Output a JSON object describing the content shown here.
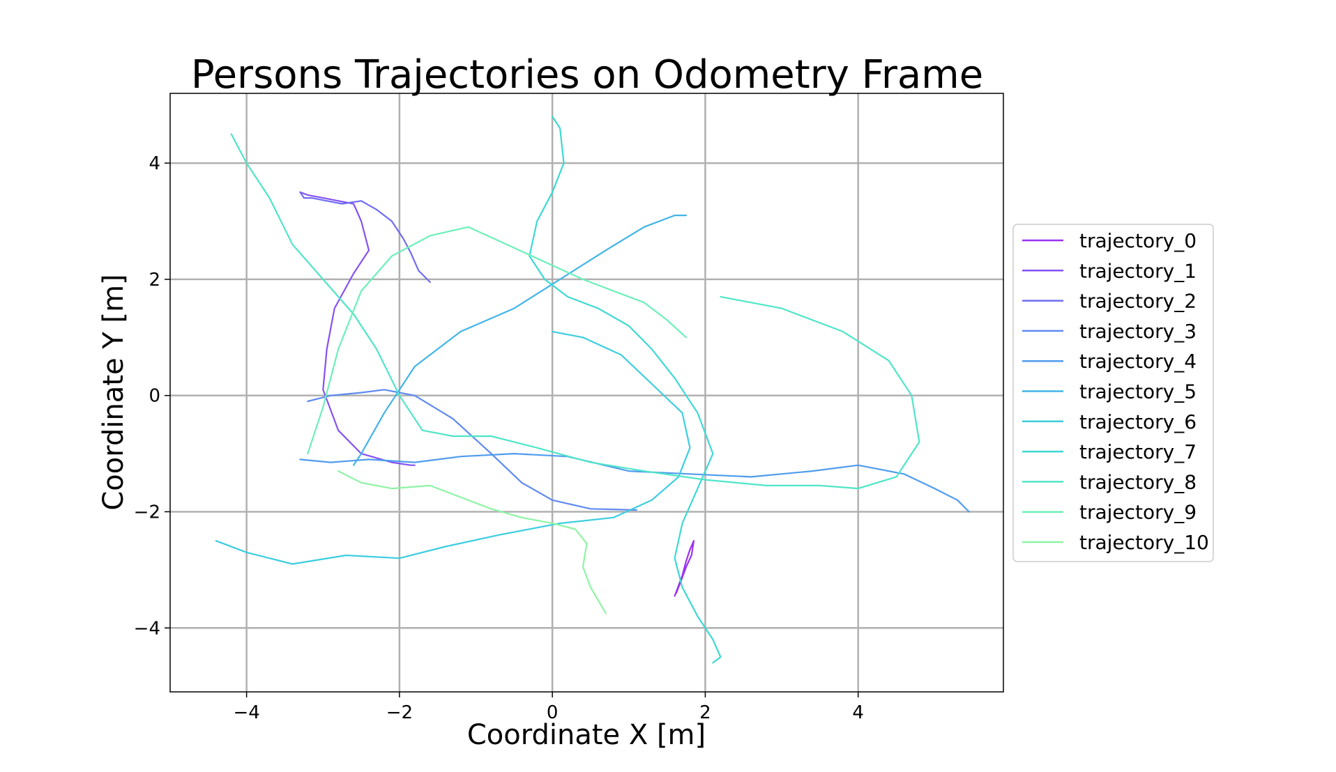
{
  "chart_data": {
    "type": "line",
    "title": "Persons Trajectories on Odometry Frame",
    "xlabel": "Coordinate X [m]",
    "ylabel": "Coordinate Y [m]",
    "xlim": [
      -5,
      5.9
    ],
    "ylim": [
      -5.1,
      5.2
    ],
    "xticks": [
      -4,
      -2,
      0,
      2,
      4
    ],
    "yticks": [
      -4,
      -2,
      0,
      2,
      4
    ],
    "xtick_labels": [
      "−4",
      "−2",
      "0",
      "2",
      "4"
    ],
    "ytick_labels": [
      "−4",
      "−2",
      "0",
      "2",
      "4"
    ],
    "grid": true,
    "legend_position": "right",
    "series": [
      {
        "name": "trajectory_0",
        "color": "#9a32f0",
        "x": [
          1.6,
          1.7,
          1.75,
          1.8,
          1.85,
          1.82,
          1.75,
          1.68,
          1.62
        ],
        "y": [
          -3.45,
          -3.1,
          -2.85,
          -2.65,
          -2.5,
          -2.75,
          -2.95,
          -3.2,
          -3.4
        ]
      },
      {
        "name": "trajectory_1",
        "color": "#8451f2",
        "x": [
          -3.3,
          -3.2,
          -3.0,
          -2.8,
          -2.6,
          -2.5,
          -2.4,
          -2.6,
          -2.85,
          -2.95,
          -3.0,
          -2.8,
          -2.5,
          -2.1,
          -1.85,
          -1.8
        ],
        "y": [
          3.5,
          3.45,
          3.4,
          3.35,
          3.3,
          3.0,
          2.5,
          2.1,
          1.5,
          0.8,
          0.1,
          -0.6,
          -1.0,
          -1.15,
          -1.2,
          -1.2
        ]
      },
      {
        "name": "trajectory_2",
        "color": "#6f6cf2",
        "x": [
          -3.3,
          -3.25,
          -3.15,
          -2.95,
          -2.75,
          -2.5,
          -2.3,
          -2.1,
          -1.95,
          -1.85,
          -1.75,
          -1.6
        ],
        "y": [
          3.5,
          3.4,
          3.4,
          3.35,
          3.3,
          3.35,
          3.2,
          3.0,
          2.7,
          2.45,
          2.15,
          1.95
        ]
      },
      {
        "name": "trajectory_3",
        "color": "#5e8af0",
        "x": [
          -3.2,
          -2.9,
          -2.5,
          -2.2,
          -1.8,
          -1.3,
          -0.8,
          -0.4,
          0.0,
          0.5,
          1.1
        ],
        "y": [
          -0.1,
          0.0,
          0.05,
          0.1,
          0.0,
          -0.4,
          -1.0,
          -1.5,
          -1.8,
          -1.95,
          -1.97
        ]
      },
      {
        "name": "trajectory_4",
        "color": "#4f9cee",
        "x": [
          -3.3,
          -2.9,
          -2.4,
          -1.8,
          -1.2,
          -0.5,
          0.2,
          1.0,
          1.8,
          2.6,
          3.4,
          4.0,
          4.6,
          5.0,
          5.3,
          5.45
        ],
        "y": [
          -1.1,
          -1.15,
          -1.1,
          -1.15,
          -1.05,
          -1.0,
          -1.05,
          -1.3,
          -1.35,
          -1.4,
          -1.3,
          -1.2,
          -1.35,
          -1.6,
          -1.8,
          -2.0
        ]
      },
      {
        "name": "trajectory_5",
        "color": "#41b4e8",
        "x": [
          -2.6,
          -2.5,
          -2.2,
          -1.8,
          -1.2,
          -0.5,
          0.1,
          0.7,
          1.2,
          1.6,
          1.75
        ],
        "y": [
          -1.2,
          -1.0,
          -0.3,
          0.5,
          1.1,
          1.5,
          2.0,
          2.5,
          2.9,
          3.1,
          3.1
        ]
      },
      {
        "name": "trajectory_6",
        "color": "#3ccde0",
        "x": [
          -4.4,
          -4.0,
          -3.4,
          -2.7,
          -2.0,
          -1.4,
          -0.7,
          0.1,
          0.8,
          1.3,
          1.65,
          1.8,
          1.7,
          1.3,
          0.9,
          0.4,
          0.0
        ],
        "y": [
          -2.5,
          -2.7,
          -2.9,
          -2.75,
          -2.8,
          -2.6,
          -2.4,
          -2.2,
          -2.1,
          -1.8,
          -1.4,
          -0.9,
          -0.3,
          0.2,
          0.7,
          1.0,
          1.1
        ]
      },
      {
        "name": "trajectory_7",
        "color": "#3cd9d2",
        "x": [
          0.0,
          0.1,
          0.15,
          0.0,
          -0.2,
          -0.3,
          -0.1,
          0.2,
          0.6,
          1.0,
          1.3,
          1.6,
          1.9,
          2.1,
          1.9,
          1.7,
          1.6,
          1.7,
          1.9,
          2.1,
          2.2,
          2.1
        ],
        "y": [
          4.8,
          4.6,
          4.0,
          3.5,
          3.0,
          2.4,
          2.0,
          1.7,
          1.5,
          1.2,
          0.8,
          0.3,
          -0.3,
          -1.0,
          -1.6,
          -2.2,
          -2.8,
          -3.3,
          -3.8,
          -4.2,
          -4.5,
          -4.6
        ]
      },
      {
        "name": "trajectory_8",
        "color": "#4fe5c8",
        "x": [
          -4.2,
          -4.0,
          -3.7,
          -3.4,
          -3.0,
          -2.6,
          -2.3,
          -2.0,
          -1.7,
          -1.3,
          -0.8,
          -0.2,
          0.5,
          1.2,
          2.0,
          2.8,
          3.5,
          4.0,
          4.5,
          4.8,
          4.7,
          4.4,
          3.8,
          3.0,
          2.2
        ],
        "y": [
          4.5,
          4.0,
          3.4,
          2.6,
          2.0,
          1.4,
          0.8,
          0.0,
          -0.6,
          -0.7,
          -0.7,
          -0.9,
          -1.15,
          -1.3,
          -1.45,
          -1.55,
          -1.55,
          -1.6,
          -1.4,
          -0.8,
          0.0,
          0.6,
          1.1,
          1.5,
          1.7
        ]
      },
      {
        "name": "trajectory_9",
        "color": "#6cf0b9",
        "x": [
          -3.2,
          -3.0,
          -2.8,
          -2.5,
          -2.1,
          -1.6,
          -1.1,
          -0.6,
          -0.1,
          0.4,
          0.8,
          1.2,
          1.5,
          1.75
        ],
        "y": [
          -1.0,
          -0.2,
          0.8,
          1.8,
          2.4,
          2.75,
          2.9,
          2.6,
          2.3,
          2.0,
          1.8,
          1.6,
          1.3,
          1.0
        ]
      },
      {
        "name": "trajectory_10",
        "color": "#8ef4a4",
        "x": [
          -2.8,
          -2.5,
          -2.1,
          -1.6,
          -1.2,
          -0.8,
          -0.4,
          0.0,
          0.3,
          0.45,
          0.4,
          0.5,
          0.7
        ],
        "y": [
          -1.3,
          -1.5,
          -1.6,
          -1.55,
          -1.75,
          -1.95,
          -2.1,
          -2.2,
          -2.3,
          -2.55,
          -2.95,
          -3.3,
          -3.75
        ]
      }
    ]
  }
}
